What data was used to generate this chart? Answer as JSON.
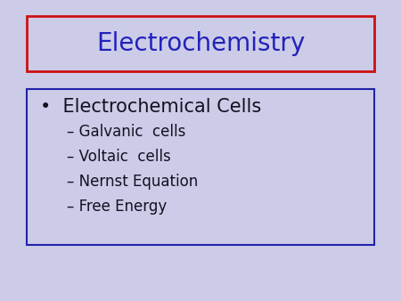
{
  "background_color": "#cccce8",
  "title": "Electrochemistry",
  "title_color": "#2222bb",
  "title_box_edge_color": "#cc1111",
  "title_fontsize": 20,
  "bullet_main": "Electrochemical Cells",
  "bullet_main_fontsize": 15,
  "sub_bullets": [
    "Galvanic  cells",
    "Voltaic  cells",
    "Nernst Equation",
    "Free Energy"
  ],
  "sub_bullet_fontsize": 12,
  "sub_bullet_color": "#111122",
  "content_box_edge_color": "#2222aa",
  "bullet_symbol": "•",
  "dash_symbol": "–"
}
